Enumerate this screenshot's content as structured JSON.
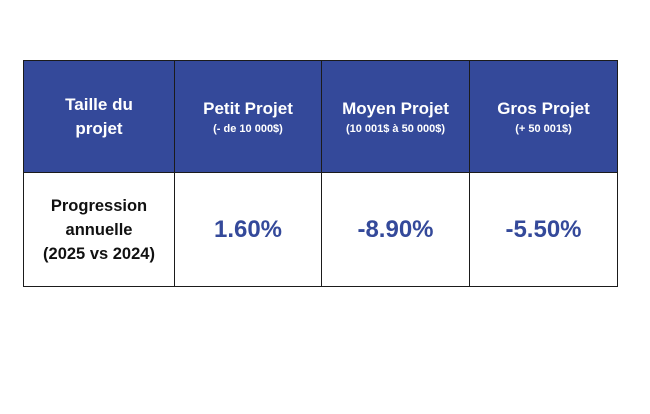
{
  "table": {
    "header": {
      "first_cell": "Taille du projet",
      "columns": [
        {
          "title": "Petit Projet",
          "subtitle": "(- de 10 000$)"
        },
        {
          "title": "Moyen Projet",
          "subtitle": "(10 001$ à 50 000$)"
        },
        {
          "title": "Gros Projet",
          "subtitle": "(+ 50 001$)"
        }
      ]
    },
    "rows": [
      {
        "label_lines": [
          "Progression",
          "annuelle",
          "(2025 vs 2024)"
        ],
        "values": [
          "1.60%",
          "-8.90%",
          "-5.50%"
        ]
      }
    ]
  },
  "colors": {
    "header_bg": "#34499a",
    "header_text": "#ffffff",
    "value_text": "#34499a",
    "border": "#1b1b1b"
  }
}
